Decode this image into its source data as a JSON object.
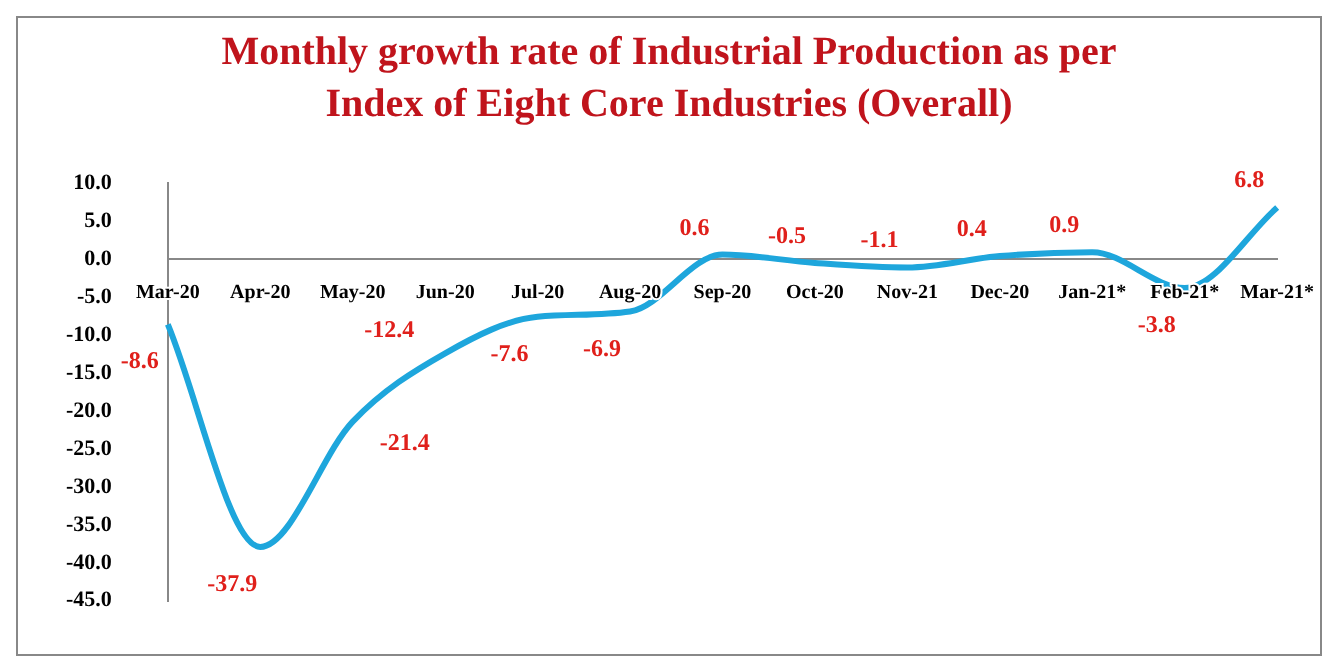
{
  "chart_data": {
    "type": "line",
    "title": "Monthly growth rate of Industrial Production as per Index of Eight Core Industries (Overall)",
    "categories": [
      "Mar-20",
      "Apr-20",
      "May-20",
      "Jun-20",
      "Jul-20",
      "Aug-20",
      "Sep-20",
      "Oct-20",
      "Nov-21",
      "Dec-20",
      "Jan-21*",
      "Feb-21*",
      "Mar-21*"
    ],
    "series": [
      {
        "color": "#1ea6dc",
        "values": [
          -8.6,
          -37.9,
          -21.4,
          -12.4,
          -7.6,
          -6.9,
          0.6,
          -0.5,
          -1.1,
          0.4,
          0.9,
          -3.8,
          6.8
        ]
      }
    ],
    "ylim": [
      -45,
      10
    ],
    "yticks": [
      {
        "value": -45,
        "label": "-45.0"
      },
      {
        "value": -40,
        "label": "-40.0"
      },
      {
        "value": -35,
        "label": "-35.0"
      },
      {
        "value": -30,
        "label": "-30.0"
      },
      {
        "value": -25,
        "label": "-25.0"
      },
      {
        "value": -20,
        "label": "-20.0"
      },
      {
        "value": -15,
        "label": "-15.0"
      },
      {
        "value": -10,
        "label": "-10.0"
      },
      {
        "value": -5,
        "label": "-5.0"
      },
      {
        "value": 0,
        "label": "0.0"
      },
      {
        "value": 5,
        "label": "5.0"
      },
      {
        "value": 10,
        "label": "10.0"
      }
    ],
    "data_labels": true,
    "marker": "none",
    "line_style": "solid",
    "grid": false,
    "legend": false
  }
}
